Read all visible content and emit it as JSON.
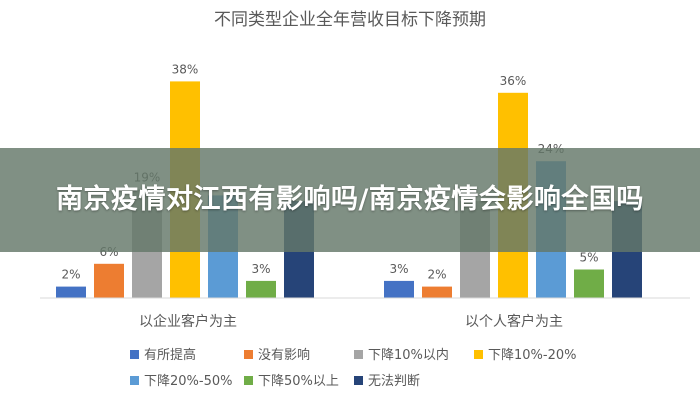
{
  "banner": {
    "text": "南京疫情对江西有影响吗/南京疫情会影响全国吗"
  },
  "chart_data": {
    "type": "bar",
    "title": "不同类型企业全年营收目标下降预期",
    "categories": [
      "以企业客户为主",
      "以个人客户为主"
    ],
    "series": [
      {
        "name": "有所提高",
        "color": "#4472C4",
        "values": [
          2,
          3
        ],
        "labels": [
          "2%",
          "3%"
        ]
      },
      {
        "name": "没有影响",
        "color": "#ED7D31",
        "values": [
          6,
          2
        ],
        "labels": [
          "6%",
          "2%"
        ]
      },
      {
        "name": "下降10%以内",
        "color": "#A5A5A5",
        "values": [
          19,
          17
        ],
        "labels": [
          "19%",
          ""
        ]
      },
      {
        "name": "下降10%-20%",
        "color": "#FFC000",
        "values": [
          38,
          36
        ],
        "labels": [
          "38%",
          "36%"
        ]
      },
      {
        "name": "下降20%-50%",
        "color": "#5B9BD5",
        "values": [
          18,
          24
        ],
        "labels": [
          "",
          "24%"
        ]
      },
      {
        "name": "下降50%以上",
        "color": "#70AD47",
        "values": [
          3,
          5
        ],
        "labels": [
          "3%",
          "5%"
        ]
      },
      {
        "name": "无法判断",
        "color": "#264478",
        "values": [
          17,
          17
        ],
        "labels": [
          "",
          ""
        ]
      }
    ],
    "ylim": [
      0,
      40
    ],
    "legend": "bottom",
    "grid": false
  }
}
